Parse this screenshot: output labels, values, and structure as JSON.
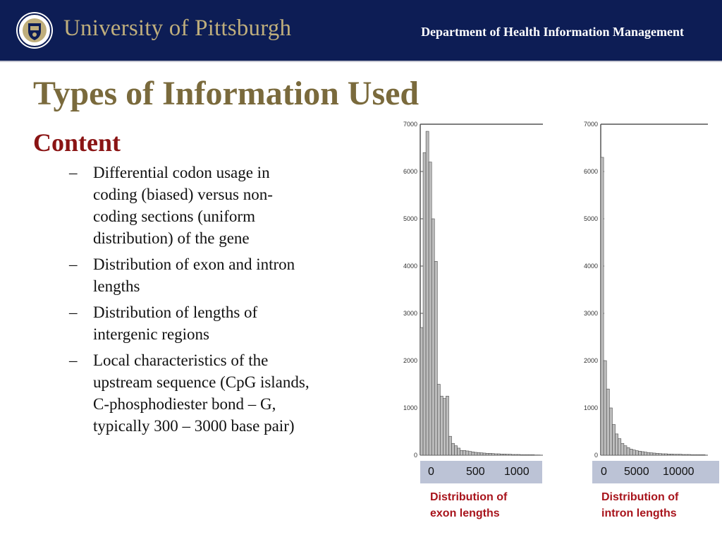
{
  "header": {
    "university": "University of Pittsburgh",
    "department": "Department of Health Information Management",
    "logo_icon": "university-seal-icon"
  },
  "slide": {
    "title": "Types of Information Used",
    "heading": "Content",
    "bullets": [
      {
        "dash": "–",
        "lines": [
          "Differential codon usage in",
          "coding (biased) versus non-",
          "coding sections (uniform",
          "distribution) of the gene"
        ]
      },
      {
        "dash": "–",
        "lines": [
          "Distribution of exon and intron",
          "lengths"
        ]
      },
      {
        "dash": "–",
        "lines": [
          "Distribution of lengths of",
          "intergenic regions"
        ]
      },
      {
        "dash": "–",
        "lines": [
          "Local characteristics of the",
          "upstream sequence (CpG islands,",
          "C-phosphodiester bond – G,",
          "typically 300 – 3000 base pair)"
        ]
      }
    ]
  },
  "chart_data": [
    {
      "type": "bar",
      "caption": [
        "Distribution of",
        "exon lengths"
      ],
      "x_ticks": [
        "0",
        "500",
        "1000"
      ],
      "x_tick_values": [
        0,
        500,
        1000
      ],
      "y_ticks": [
        "0",
        "1000",
        "2000",
        "3000",
        "4000",
        "5000",
        "6000",
        "7000"
      ],
      "ylim": [
        0,
        7000
      ],
      "xlim": [
        0,
        1050
      ],
      "bin_width": 25,
      "values": [
        2700,
        6400,
        6850,
        6200,
        5000,
        4100,
        1500,
        1250,
        1200,
        1250,
        400,
        250,
        200,
        150,
        100,
        100,
        90,
        80,
        70,
        60,
        55,
        50,
        45,
        40,
        40,
        35,
        30,
        30,
        25,
        25,
        20,
        20,
        15,
        15,
        15,
        10,
        10,
        10,
        10,
        10,
        5,
        5
      ],
      "bar_color": "#bdbdbd"
    },
    {
      "type": "bar",
      "caption": [
        "Distribution of",
        "intron lengths"
      ],
      "x_ticks": [
        "0",
        "5000",
        "10000"
      ],
      "x_tick_values": [
        0,
        5000,
        10000
      ],
      "y_ticks": [
        "0",
        "1000",
        "2000",
        "3000",
        "4000",
        "5000",
        "6000",
        "7000"
      ],
      "ylim": [
        0,
        7000
      ],
      "xlim": [
        0,
        14400
      ],
      "bin_width": 400,
      "values": [
        6300,
        2000,
        1400,
        1000,
        650,
        450,
        350,
        250,
        200,
        160,
        130,
        110,
        95,
        85,
        75,
        65,
        55,
        50,
        45,
        40,
        35,
        30,
        30,
        25,
        25,
        20,
        20,
        20,
        15,
        15,
        15,
        10,
        10,
        10,
        10,
        10
      ],
      "bar_color": "#bdbdbd"
    }
  ],
  "colors": {
    "banner": "#0d1d55",
    "title": "#7a6a3c",
    "heading": "#8a1414",
    "caption": "#a8141c",
    "axis_box": "#bcc3d6"
  }
}
